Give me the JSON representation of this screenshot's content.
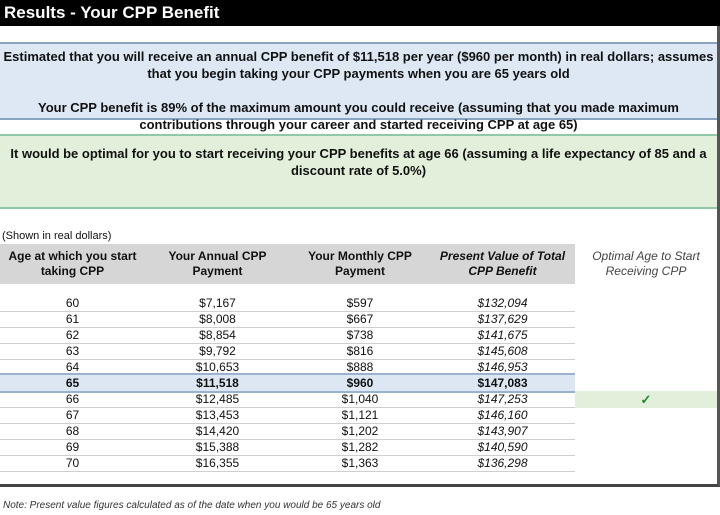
{
  "title": "Results - Your CPP Benefit",
  "summary": {
    "estimate": "Estimated that you will receive an annual CPP benefit of $11,518 per year ($960 per month) in real dollars; assumes that you begin taking your CPP payments when you are 65 years old",
    "percent_of_max": "Your CPP benefit is 89% of the maximum amount you could receive (assuming that you made maximum contributions through your career and started receiving CPP at age 65)",
    "optimal": "It would be optimal for you to start receiving your CPP benefits at age 66 (assuming a life expectancy of 85 and a discount rate of 5.0%)"
  },
  "table": {
    "caption": "(Shown in real dollars)",
    "headers": [
      "Age at which you start taking CPP",
      "Your Annual CPP Payment",
      "Your Monthly CPP Payment",
      "Present Value of Total CPP Benefit",
      "Optimal Age to Start Receiving CPP"
    ],
    "rows": [
      [
        "60",
        "$7,167",
        "$597",
        "$132,094"
      ],
      [
        "61",
        "$8,008",
        "$667",
        "$137,629"
      ],
      [
        "62",
        "$8,854",
        "$738",
        "$141,675"
      ],
      [
        "63",
        "$9,792",
        "$816",
        "$145,608"
      ],
      [
        "64",
        "$10,653",
        "$888",
        "$146,953"
      ],
      [
        "65",
        "$11,518",
        "$960",
        "$147,083"
      ],
      [
        "66",
        "$12,485",
        "$1,040",
        "$147,253"
      ],
      [
        "67",
        "$13,453",
        "$1,121",
        "$146,160"
      ],
      [
        "68",
        "$14,420",
        "$1,202",
        "$143,907"
      ],
      [
        "69",
        "$15,388",
        "$1,282",
        "$140,590"
      ],
      [
        "70",
        "$16,355",
        "$1,363",
        "$136,298"
      ]
    ],
    "highlighted_age": "65",
    "optimal_age": "66",
    "optimal_mark": "✓",
    "optimal_icon": "checkmark-icon"
  },
  "note": "Note: Present value figures calculated as of the date when you would be 65 years old",
  "colors": {
    "title_bg": "#000000",
    "info_bg": "#dde8f4",
    "optimal_bg": "#e2efda",
    "check": "#1a8a2a"
  }
}
